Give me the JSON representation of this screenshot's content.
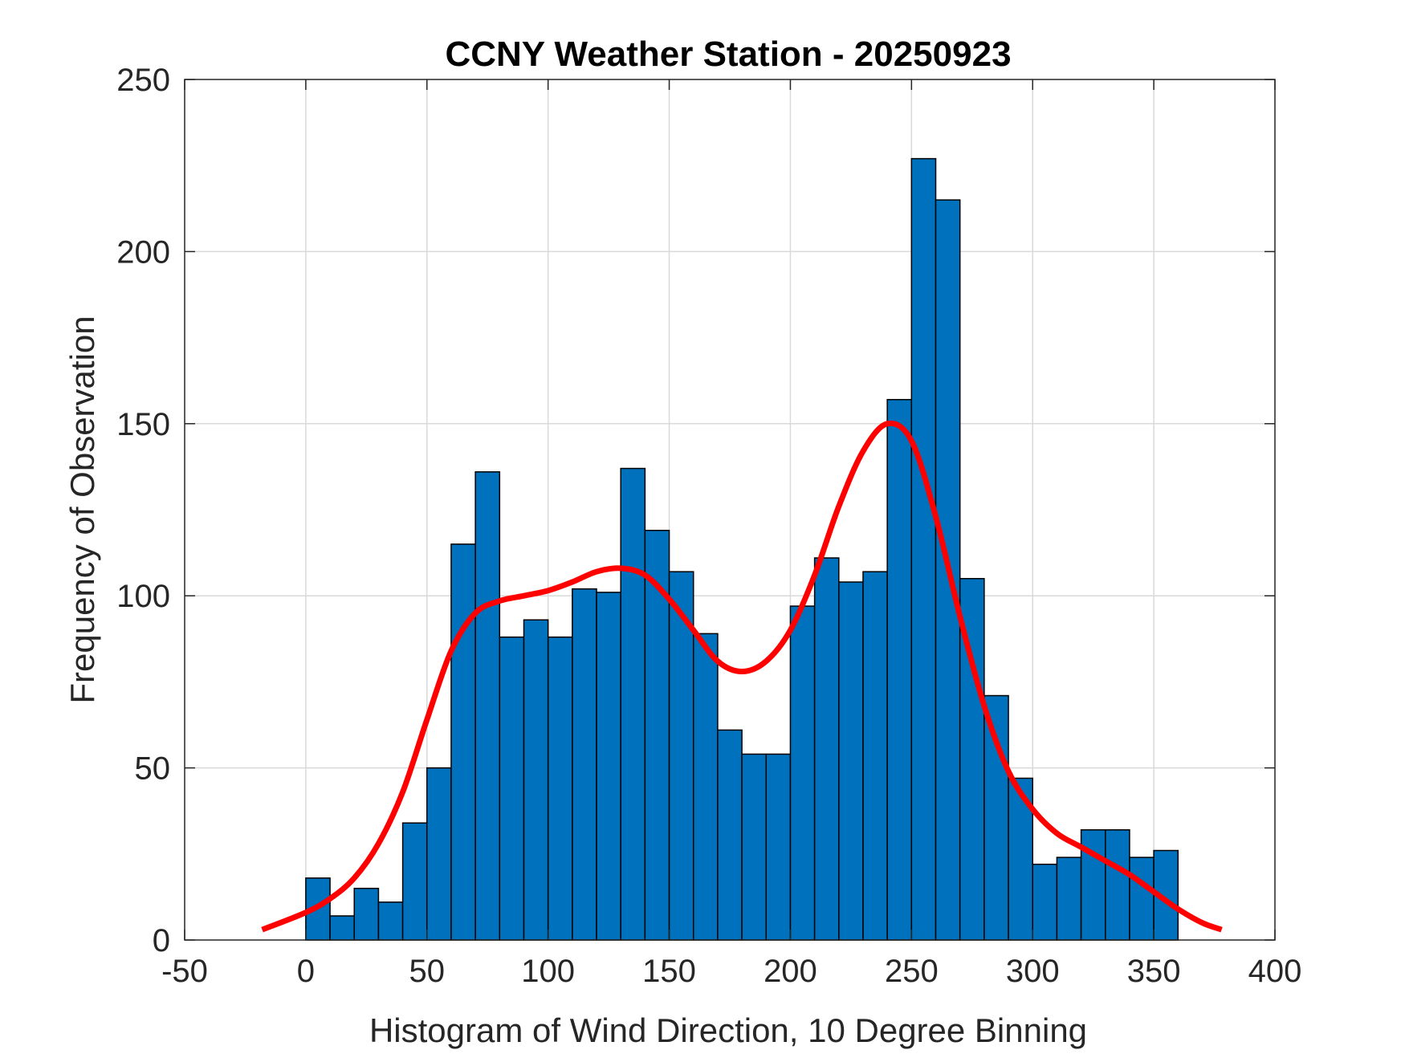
{
  "colors": {
    "bar_fill": "#0072BD",
    "bar_edge": "#000000",
    "fit_curve": "#FF0000",
    "grid": "#D9D9D9",
    "axes": "#262626"
  },
  "chart_data": {
    "type": "bar",
    "subtype": "histogram with density fit",
    "title": "CCNY Weather Station - 20250923",
    "xlabel": "Histogram of Wind Direction, 10 Degree Binning",
    "ylabel": "Frequency of Observation",
    "xlim": [
      -50,
      400
    ],
    "ylim": [
      0,
      250
    ],
    "xticks": [
      -50,
      0,
      50,
      100,
      150,
      200,
      250,
      300,
      350,
      400
    ],
    "yticks": [
      0,
      50,
      100,
      150,
      200,
      250
    ],
    "grid": true,
    "bin_width": 10,
    "bin_edges": [
      0,
      10,
      20,
      30,
      40,
      50,
      60,
      70,
      80,
      90,
      100,
      110,
      120,
      130,
      140,
      150,
      160,
      170,
      180,
      190,
      200,
      210,
      220,
      230,
      240,
      250,
      260,
      270,
      280,
      290,
      300,
      310,
      320,
      330,
      340,
      350,
      360
    ],
    "counts": [
      18,
      7,
      15,
      11,
      34,
      50,
      115,
      136,
      88,
      93,
      88,
      102,
      101,
      137,
      119,
      107,
      89,
      61,
      54,
      54,
      97,
      111,
      104,
      107,
      157,
      227,
      215,
      105,
      71,
      47,
      22,
      24,
      32,
      32,
      24,
      26
    ],
    "fit_curve": {
      "x": [
        -18,
        0,
        10,
        20,
        30,
        40,
        50,
        60,
        70,
        80,
        90,
        100,
        110,
        120,
        130,
        140,
        150,
        160,
        170,
        180,
        190,
        200,
        210,
        220,
        230,
        240,
        250,
        260,
        270,
        280,
        290,
        300,
        310,
        320,
        330,
        340,
        350,
        360,
        370,
        378
      ],
      "y": [
        3,
        8,
        12,
        18,
        28,
        43,
        64,
        84,
        95,
        98.5,
        100,
        101.5,
        104,
        107,
        108,
        106,
        99,
        90,
        81,
        78,
        81,
        90,
        106,
        126,
        142,
        150,
        145,
        123,
        94,
        68,
        49,
        38,
        31,
        27,
        23,
        19,
        14,
        9,
        5,
        3
      ]
    }
  }
}
